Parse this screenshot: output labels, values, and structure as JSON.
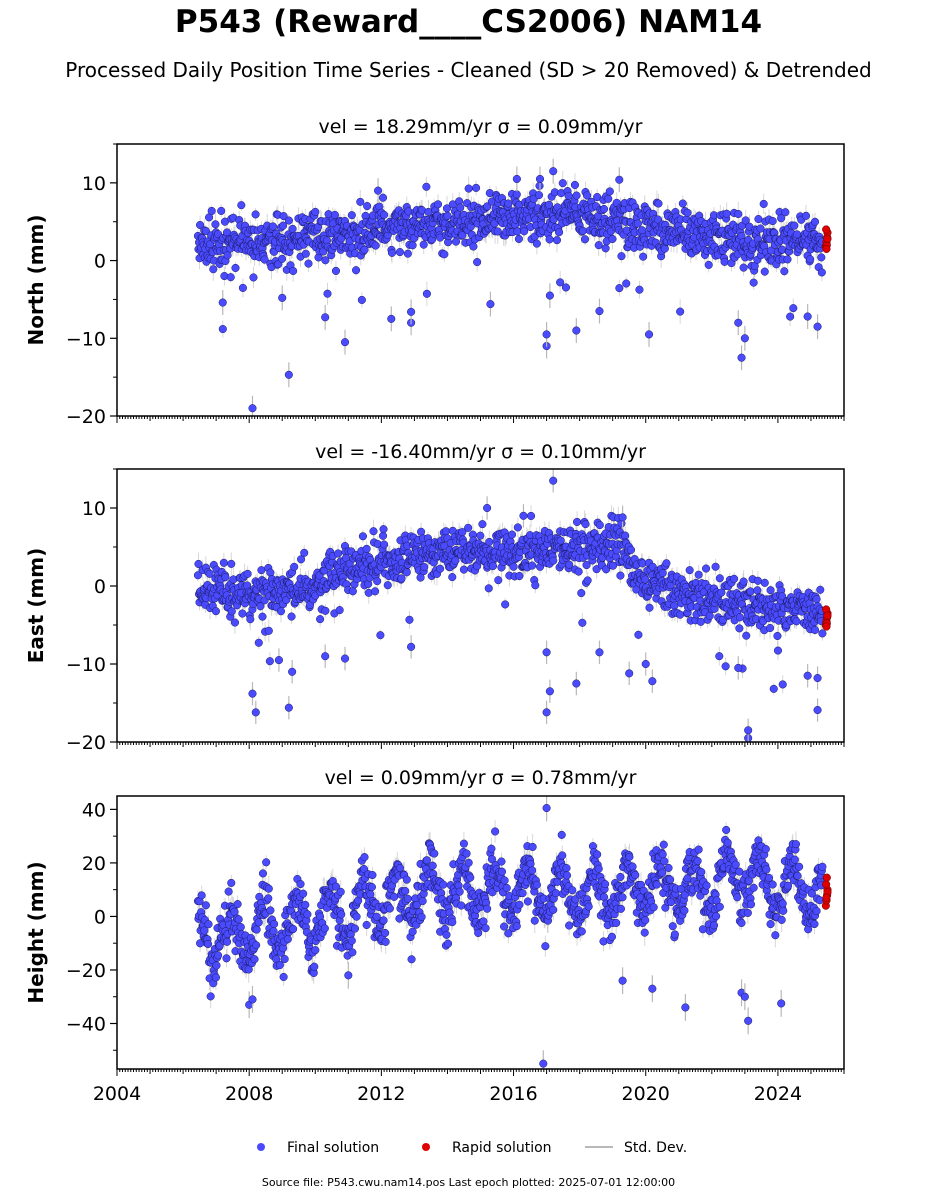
{
  "title": "P543 (Reward____CS2006) NAM14",
  "subtitle": "Processed Daily Position Time Series - Cleaned (SD > 20 Removed) & Detrended",
  "footer": "Source file: P543.cwu.nam14.pos  Last epoch plotted: 2025-07-01 12:00:00",
  "legend": {
    "final": "Final solution",
    "rapid": "Rapid solution",
    "std": "Std. Dev."
  },
  "colors": {
    "final": "#4a4aff",
    "rapid": "#e00000",
    "std": "#b8b8b8"
  },
  "chart_data": [
    {
      "type": "scatter",
      "title": "vel = 18.29mm/yr   σ = 0.09mm/yr",
      "ylabel": "North (mm)",
      "ylim": [
        -20,
        15
      ],
      "yticks": [
        -20,
        -10,
        0,
        10
      ],
      "xlim": [
        2004.0,
        2026.0
      ],
      "xticks": [
        2004,
        2008,
        2012,
        2016,
        2020,
        2024
      ],
      "series": [
        {
          "name": "Final solution",
          "trend": [
            [
              2006.4,
              2.0
            ],
            [
              2010.0,
              3.0
            ],
            [
              2012.0,
              4.0
            ],
            [
              2014.0,
              5.0
            ],
            [
              2016.0,
              6.0
            ],
            [
              2017.5,
              6.0
            ],
            [
              2019.0,
              5.0
            ],
            [
              2020.5,
              3.5
            ],
            [
              2022.0,
              3.0
            ],
            [
              2023.0,
              2.5
            ],
            [
              2025.3,
              2.5
            ]
          ],
          "scatter_sd": 1.6,
          "outliers": [
            [
              2008.1,
              -19.0
            ],
            [
              2009.2,
              -14.7
            ],
            [
              2010.9,
              -10.5
            ],
            [
              2010.3,
              -7.3
            ],
            [
              2012.3,
              -7.5
            ],
            [
              2012.9,
              -8.0
            ],
            [
              2012.9,
              -6.6
            ],
            [
              2015.3,
              -5.6
            ],
            [
              2017.0,
              -11.0
            ],
            [
              2017.0,
              -9.5
            ],
            [
              2017.1,
              -4.5
            ],
            [
              2017.9,
              -9.0
            ],
            [
              2018.6,
              -6.5
            ],
            [
              2020.1,
              -9.5
            ],
            [
              2022.9,
              -12.5
            ],
            [
              2023.0,
              -10.0
            ],
            [
              2022.8,
              -8.0
            ],
            [
              2024.9,
              -7.2
            ],
            [
              2025.2,
              -8.5
            ],
            [
              2009.0,
              -4.8
            ],
            [
              2007.2,
              -5.4
            ],
            [
              2017.2,
              11.5
            ],
            [
              2016.8,
              10.5
            ],
            [
              2019.2,
              10.4
            ],
            [
              2016.1,
              10.5
            ],
            [
              2011.9,
              9.0
            ]
          ]
        },
        {
          "name": "Rapid solution",
          "x": [
            2025.45,
            2025.47,
            2025.49,
            2025.5,
            2025.46,
            2025.48,
            2025.5,
            2025.47
          ],
          "y": [
            1.8,
            2.4,
            3.0,
            3.6,
            4.0,
            2.0,
            2.8,
            1.5
          ]
        }
      ]
    },
    {
      "type": "scatter",
      "title": "vel = -16.40mm/yr   σ = 0.10mm/yr",
      "ylabel": "East (mm)",
      "ylim": [
        -20,
        15
      ],
      "yticks": [
        -20,
        -10,
        0,
        10
      ],
      "xlim": [
        2004.0,
        2026.0
      ],
      "xticks": [
        2004,
        2008,
        2012,
        2016,
        2020,
        2024
      ],
      "series": [
        {
          "name": "Final solution",
          "trend": [
            [
              2006.4,
              -1.0
            ],
            [
              2010.0,
              -0.5
            ],
            [
              2010.5,
              2.0
            ],
            [
              2012.0,
              3.0
            ],
            [
              2014.0,
              4.5
            ],
            [
              2016.0,
              4.5
            ],
            [
              2019.4,
              5.0
            ],
            [
              2019.6,
              1.0
            ],
            [
              2022.0,
              -2.0
            ],
            [
              2024.0,
              -3.0
            ],
            [
              2025.3,
              -3.8
            ]
          ],
          "scatter_sd": 1.5,
          "outliers": [
            [
              2008.1,
              -13.8
            ],
            [
              2008.2,
              -16.2
            ],
            [
              2009.2,
              -15.6
            ],
            [
              2008.9,
              -9.5
            ],
            [
              2009.3,
              -11.0
            ],
            [
              2010.3,
              -9.0
            ],
            [
              2010.9,
              -9.3
            ],
            [
              2012.9,
              -7.8
            ],
            [
              2017.0,
              -16.2
            ],
            [
              2017.1,
              -13.5
            ],
            [
              2017.0,
              -8.5
            ],
            [
              2017.9,
              -12.5
            ],
            [
              2018.6,
              -8.5
            ],
            [
              2019.5,
              -11.2
            ],
            [
              2020.2,
              -12.2
            ],
            [
              2020.0,
              -10.0
            ],
            [
              2022.8,
              -10.5
            ],
            [
              2023.1,
              -19.5
            ],
            [
              2023.1,
              -18.5
            ],
            [
              2024.9,
              -11.5
            ],
            [
              2025.2,
              -15.9
            ],
            [
              2025.2,
              -11.8
            ],
            [
              2017.2,
              13.5
            ],
            [
              2015.2,
              10.0
            ],
            [
              2016.3,
              9.0
            ],
            [
              2019.3,
              8.8
            ]
          ]
        },
        {
          "name": "Rapid solution",
          "x": [
            2025.45,
            2025.47,
            2025.49,
            2025.5,
            2025.46,
            2025.48,
            2025.5,
            2025.47
          ],
          "y": [
            -5.0,
            -4.5,
            -4.0,
            -3.5,
            -3.0,
            -4.8,
            -3.8,
            -5.2
          ]
        }
      ]
    },
    {
      "type": "scatter",
      "title": "vel = 0.09mm/yr   σ = 0.78mm/yr",
      "ylabel": "Height (mm)",
      "ylim": [
        -57,
        45
      ],
      "yticks": [
        -40,
        -20,
        0,
        20,
        40
      ],
      "xlim": [
        2004.0,
        2026.0
      ],
      "xticks": [
        2004,
        2008,
        2012,
        2016,
        2020,
        2024
      ],
      "xticklabels": [
        "2004",
        "2008",
        "2012",
        "2016",
        "2020",
        "2024"
      ],
      "series": [
        {
          "name": "Final solution",
          "trend": [
            [
              2006.4,
              -8.0
            ],
            [
              2008.0,
              -6.0
            ],
            [
              2010.0,
              -2.0
            ],
            [
              2012.0,
              5.0
            ],
            [
              2014.0,
              10.0
            ],
            [
              2016.0,
              10.0
            ],
            [
              2018.0,
              8.0
            ],
            [
              2020.0,
              10.0
            ],
            [
              2022.0,
              12.0
            ],
            [
              2023.0,
              15.0
            ],
            [
              2025.3,
              8.0
            ]
          ],
          "scatter_sd": 5.0,
          "seasonal_amp": 9.0,
          "outliers": [
            [
              2008.0,
              -33.0
            ],
            [
              2008.1,
              -31.0
            ],
            [
              2016.9,
              -55.0
            ],
            [
              2017.0,
              40.5
            ],
            [
              2020.2,
              -27.0
            ],
            [
              2021.2,
              -34.0
            ],
            [
              2022.9,
              -28.5
            ],
            [
              2023.0,
              -30.0
            ],
            [
              2023.1,
              -39.0
            ],
            [
              2024.1,
              -32.5
            ],
            [
              2019.3,
              -24.0
            ],
            [
              2011.0,
              -22.0
            ]
          ]
        },
        {
          "name": "Rapid solution",
          "x": [
            2025.45,
            2025.47,
            2025.49,
            2025.5,
            2025.46,
            2025.48,
            2025.5,
            2025.47
          ],
          "y": [
            4.0,
            6.0,
            8.0,
            10.0,
            12.0,
            14.5,
            9.0,
            7.0
          ]
        }
      ]
    }
  ]
}
